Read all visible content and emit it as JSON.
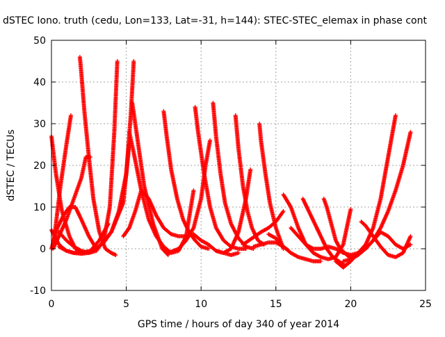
{
  "chart_data": {
    "type": "scatter",
    "title": "dSTEC Iono. truth (cedu, Lon=133, Lat=-31, h=144): STEC-STEC_elemax in phase cont",
    "xlabel": "GPS time / hours of day 340 of year 2014",
    "ylabel": "dSTEC  / TECUs",
    "xlim": [
      0,
      25
    ],
    "ylim": [
      -10,
      50
    ],
    "xticks": [
      0,
      5,
      10,
      15,
      20,
      25
    ],
    "yticks": [
      -10,
      0,
      10,
      20,
      30,
      40,
      50
    ],
    "grid": true,
    "marker": "+",
    "colors": {
      "series": "#ff0000",
      "grid": "#a0a0a0",
      "axes": "#000000"
    },
    "series": [
      {
        "x": [
          0.0,
          0.3,
          0.7,
          1.2,
          1.6,
          2.0,
          2.2
        ],
        "y": [
          27,
          18,
          9,
          3,
          0,
          -0.8,
          -1
        ]
      },
      {
        "x": [
          0.0,
          0.5,
          1.0,
          1.5,
          2.0,
          2.4,
          2.8,
          3.3,
          4.0,
          4.8,
          5.2
        ],
        "y": [
          4.5,
          1,
          -0.5,
          -1,
          -1.2,
          -1,
          -0.5,
          1,
          4,
          11,
          25
        ]
      },
      {
        "x": [
          0.1,
          0.3,
          0.6,
          1.0,
          1.3
        ],
        "y": [
          0,
          6,
          15,
          25,
          32
        ]
      },
      {
        "x": [
          0.1,
          0.5,
          1.0,
          1.5,
          2.0,
          2.3,
          2.6
        ],
        "y": [
          0,
          3,
          7,
          12,
          17,
          22,
          22
        ]
      },
      {
        "x": [
          0.0,
          0.4,
          0.8,
          1.2,
          1.6,
          2.0,
          2.5,
          3.0
        ],
        "y": [
          0,
          5,
          8,
          10,
          10,
          7,
          3,
          0
        ]
      },
      {
        "x": [
          1.9,
          2.0,
          2.2,
          2.5,
          2.8,
          3.2,
          3.6,
          4.0,
          4.3
        ],
        "y": [
          46,
          42,
          33,
          22,
          12,
          4,
          0,
          -1,
          -1.5
        ]
      },
      {
        "x": [
          0.5,
          1.0,
          1.5,
          2.0,
          2.5,
          3.0,
          3.5,
          3.9,
          4.2,
          4.4
        ],
        "y": [
          4,
          2,
          0.5,
          -0.5,
          -1,
          -0.5,
          2,
          10,
          28,
          45
        ]
      },
      {
        "x": [
          0.5,
          1.0,
          1.5,
          2.0,
          2.6,
          3.2,
          3.8
        ],
        "y": [
          0.5,
          -0.5,
          -1,
          -1,
          -0.5,
          2,
          6
        ]
      },
      {
        "x": [
          2.6,
          3.0,
          3.5,
          4.0,
          4.5,
          5.0,
          5.3,
          5.5
        ],
        "y": [
          -0.5,
          0,
          1.5,
          4,
          9,
          18,
          32,
          45
        ]
      },
      {
        "x": [
          5.2,
          5.5,
          6.0,
          6.5,
          7.0,
          7.5,
          8.0,
          8.5,
          9.0,
          9.5
        ],
        "y": [
          28,
          23,
          14,
          7,
          3,
          0.5,
          -1,
          -0.5,
          3,
          14
        ]
      },
      {
        "x": [
          5.4,
          5.8,
          6.2,
          6.8,
          7.4,
          7.8
        ],
        "y": [
          35,
          25,
          15,
          6,
          0,
          -1.5
        ]
      },
      {
        "x": [
          4.8,
          5.2,
          5.6,
          6.0,
          6.5,
          7.0,
          7.5,
          8.0,
          8.5,
          9.0,
          9.5,
          10.0,
          10.5,
          11.0,
          11.5,
          12.0,
          12.5
        ],
        "y": [
          3,
          5,
          9,
          14,
          12,
          8,
          5,
          3.5,
          3,
          3,
          3.5,
          2,
          1,
          -0.5,
          -1,
          -1.5,
          -1
        ]
      },
      {
        "x": [
          7.5,
          7.7,
          8.0,
          8.4,
          8.8,
          9.2,
          9.6,
          10.0,
          10.5
        ],
        "y": [
          33,
          27,
          19,
          12,
          7,
          4,
          2,
          0.5,
          0
        ]
      },
      {
        "x": [
          7.8,
          8.5,
          9.0,
          9.5,
          10.0,
          10.3,
          10.6
        ],
        "y": [
          -1,
          0,
          2,
          5,
          12,
          20,
          26
        ]
      },
      {
        "x": [
          9.6,
          9.8,
          10.2,
          10.6,
          11.0,
          11.5,
          12.0,
          12.5,
          13.0
        ],
        "y": [
          34,
          28,
          18,
          10,
          5,
          2,
          0.5,
          0,
          0
        ]
      },
      {
        "x": [
          10.8,
          11.0,
          11.3,
          11.6,
          12.0,
          12.5,
          13.0,
          13.5
        ],
        "y": [
          35,
          27,
          18,
          11,
          6,
          2.5,
          0.5,
          0
        ]
      },
      {
        "x": [
          11.0,
          11.5,
          12.0,
          12.5,
          13.0,
          13.3
        ],
        "y": [
          -0.5,
          -1,
          0,
          4,
          12,
          19
        ]
      },
      {
        "x": [
          12.3,
          12.5,
          12.8,
          13.1,
          13.4,
          13.8,
          14.2
        ],
        "y": [
          32,
          24,
          15,
          9,
          5,
          2,
          1
        ]
      },
      {
        "x": [
          12.8,
          13.2,
          13.6,
          14.0,
          14.5,
          15.0,
          15.5
        ],
        "y": [
          1,
          2,
          3,
          4,
          5,
          6.5,
          9
        ]
      },
      {
        "x": [
          13.9,
          14.0,
          14.3,
          14.6,
          15.0,
          15.5
        ],
        "y": [
          30,
          26,
          18,
          11,
          5,
          0
        ]
      },
      {
        "x": [
          13.5,
          14.0,
          14.5,
          15.0,
          15.5,
          16.0,
          16.5,
          17.0,
          17.5,
          18.0
        ],
        "y": [
          0.5,
          1,
          1.5,
          1.5,
          0.5,
          -1,
          -2,
          -2.5,
          -3,
          -3
        ]
      },
      {
        "x": [
          14.5,
          15.0,
          15.5,
          15.8,
          16.0
        ],
        "y": [
          3.5,
          2.5,
          0.5,
          -0.3,
          -1
        ]
      },
      {
        "x": [
          15.5,
          16.0,
          16.5,
          17.0,
          17.5,
          18.0,
          18.5,
          19.0,
          19.5,
          20.0
        ],
        "y": [
          13,
          10,
          5,
          1,
          -1,
          -2,
          -2.5,
          -2,
          1,
          9.5
        ]
      },
      {
        "x": [
          16.8,
          17.2,
          17.6,
          18.0,
          18.4,
          18.8,
          19.2,
          19.6
        ],
        "y": [
          12,
          9,
          6,
          3,
          0,
          -2,
          -3,
          -4
        ]
      },
      {
        "x": [
          16.0,
          16.5,
          17.0,
          17.5,
          18.0,
          18.5,
          19.0,
          19.5,
          20.0,
          20.5,
          21.0,
          21.5,
          22.0,
          22.5,
          23.0,
          23.5,
          24.0
        ],
        "y": [
          5,
          3,
          1,
          0,
          0,
          0.5,
          0,
          -1,
          -1.5,
          -1,
          0,
          2,
          4,
          3,
          1,
          0,
          1
        ]
      },
      {
        "x": [
          18.2,
          18.4,
          18.7,
          19.0,
          19.3,
          19.6,
          19.9,
          20.2
        ],
        "y": [
          12,
          10,
          6,
          2,
          0,
          -1,
          -2,
          -2
        ]
      },
      {
        "x": [
          19.0,
          19.5,
          20.0,
          20.5,
          21.0,
          21.5,
          22.0,
          22.5,
          23.0
        ],
        "y": [
          -3,
          -4.5,
          -3,
          -1,
          1,
          5,
          12,
          22,
          32
        ]
      },
      {
        "x": [
          19.5,
          20.0,
          20.5,
          21.0,
          21.5,
          22.0,
          22.5,
          23.0,
          23.5,
          24.0
        ],
        "y": [
          -3,
          -2.5,
          -1.5,
          0,
          2,
          5,
          9,
          14,
          20,
          28
        ]
      },
      {
        "x": [
          20.7,
          21.0,
          21.5,
          22.0,
          22.5,
          23.0,
          23.5,
          24.0
        ],
        "y": [
          6.5,
          5.5,
          3,
          0.5,
          -1.5,
          -2,
          -1,
          3
        ]
      }
    ]
  }
}
